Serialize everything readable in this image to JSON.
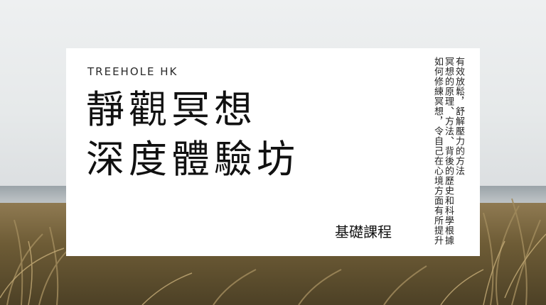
{
  "brand": "TREEHOLE HK",
  "title": {
    "line1": "靜觀冥想",
    "line2": "深度體驗坊"
  },
  "subtitle": "基礎課程",
  "description": {
    "col1": "有效放鬆，舒解壓力的方法",
    "col2": "冥想的原理、方法、背後的歷史和科學根據",
    "col3": "如何修練冥想，令自己在心境方面有所提升"
  },
  "colors": {
    "card": "#ffffff",
    "text": "#111111",
    "sky": "#e9ebec",
    "grass": "#8f7a52"
  }
}
